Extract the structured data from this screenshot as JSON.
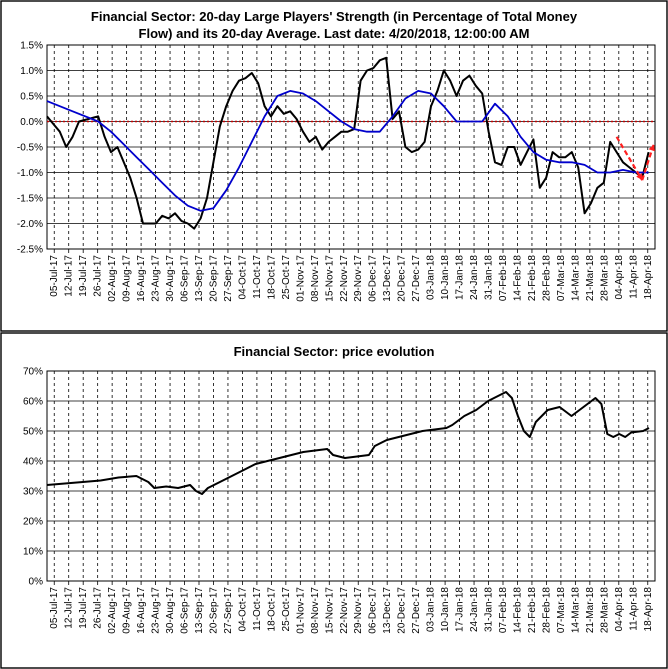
{
  "chart_data": [
    {
      "type": "line",
      "title_lines": [
        "Financial Sector: 20-day Large Players' Strength (in Percentage of Total Money",
        "Flow) and its 20-day Average. Last date: 4/20/2018, 12:00:00 AM"
      ],
      "ylim": [
        -2.5,
        1.5
      ],
      "ytick_labels": [
        "1.5%",
        "1.0%",
        "0.5%",
        "0.0%",
        "-0.5%",
        "-1.0%",
        "-1.5%",
        "-2.0%",
        "-2.5%"
      ],
      "grid": true,
      "zero_line_color": "#c00000",
      "x_labels": [
        "05-Jul-17",
        "12-Jul-17",
        "19-Jul-17",
        "26-Jul-17",
        "02-Aug-17",
        "09-Aug-17",
        "16-Aug-17",
        "23-Aug-17",
        "30-Aug-17",
        "06-Sep-17",
        "13-Sep-17",
        "20-Sep-17",
        "27-Sep-17",
        "04-Oct-17",
        "11-Oct-17",
        "18-Oct-17",
        "25-Oct-17",
        "01-Nov-17",
        "08-Nov-17",
        "15-Nov-17",
        "22-Nov-17",
        "29-Nov-17",
        "06-Dec-17",
        "13-Dec-17",
        "20-Dec-17",
        "27-Dec-17",
        "03-Jan-18",
        "10-Jan-18",
        "17-Jan-18",
        "24-Jan-18",
        "31-Jan-18",
        "07-Feb-18",
        "14-Feb-18",
        "21-Feb-18",
        "28-Feb-18",
        "07-Mar-18",
        "14-Mar-18",
        "21-Mar-18",
        "28-Mar-18",
        "04-Apr-18",
        "11-Apr-18",
        "18-Apr-18"
      ],
      "series": [
        {
          "color": "#000000",
          "points": [
            [
              0,
              0.1
            ],
            [
              2,
              -0.2
            ],
            [
              3,
              -0.5
            ],
            [
              4,
              -0.3
            ],
            [
              5,
              0.0
            ],
            [
              8,
              0.1
            ],
            [
              9,
              -0.3
            ],
            [
              10,
              -0.6
            ],
            [
              11,
              -0.5
            ],
            [
              12,
              -0.8
            ],
            [
              13,
              -1.1
            ],
            [
              14,
              -1.5
            ],
            [
              15,
              -2.0
            ],
            [
              17,
              -2.0
            ],
            [
              18,
              -1.85
            ],
            [
              19,
              -1.9
            ],
            [
              20,
              -1.8
            ],
            [
              21,
              -1.95
            ],
            [
              22,
              -2.0
            ],
            [
              23,
              -2.1
            ],
            [
              24,
              -1.9
            ],
            [
              25,
              -1.5
            ],
            [
              26,
              -0.8
            ],
            [
              27,
              -0.1
            ],
            [
              28,
              0.3
            ],
            [
              29,
              0.6
            ],
            [
              30,
              0.8
            ],
            [
              31,
              0.85
            ],
            [
              32,
              0.95
            ],
            [
              33,
              0.75
            ],
            [
              34,
              0.3
            ],
            [
              35,
              0.1
            ],
            [
              36,
              0.3
            ],
            [
              37,
              0.15
            ],
            [
              38,
              0.2
            ],
            [
              39,
              0.05
            ],
            [
              40,
              -0.2
            ],
            [
              41,
              -0.4
            ],
            [
              42,
              -0.3
            ],
            [
              43,
              -0.55
            ],
            [
              44,
              -0.4
            ],
            [
              45,
              -0.3
            ],
            [
              46,
              -0.2
            ],
            [
              47,
              -0.2
            ],
            [
              48,
              -0.15
            ],
            [
              49,
              0.8
            ],
            [
              50,
              1.0
            ],
            [
              51,
              1.05
            ],
            [
              52,
              1.2
            ],
            [
              53,
              1.25
            ],
            [
              54,
              0.05
            ],
            [
              55,
              0.2
            ],
            [
              56,
              -0.5
            ],
            [
              57,
              -0.6
            ],
            [
              58,
              -0.55
            ],
            [
              59,
              -0.4
            ],
            [
              60,
              0.3
            ],
            [
              61,
              0.6
            ],
            [
              62,
              1.0
            ],
            [
              63,
              0.8
            ],
            [
              64,
              0.5
            ],
            [
              65,
              0.8
            ],
            [
              66,
              0.9
            ],
            [
              67,
              0.7
            ],
            [
              68,
              0.55
            ],
            [
              69,
              -0.2
            ],
            [
              70,
              -0.8
            ],
            [
              71,
              -0.85
            ],
            [
              72,
              -0.5
            ],
            [
              73,
              -0.5
            ],
            [
              74,
              -0.85
            ],
            [
              75,
              -0.6
            ],
            [
              76,
              -0.35
            ],
            [
              77,
              -1.3
            ],
            [
              78,
              -1.1
            ],
            [
              79,
              -0.6
            ],
            [
              80,
              -0.7
            ],
            [
              81,
              -0.7
            ],
            [
              82,
              -0.6
            ],
            [
              83,
              -0.9
            ],
            [
              84,
              -1.8
            ],
            [
              85,
              -1.6
            ],
            [
              86,
              -1.3
            ],
            [
              87,
              -1.2
            ],
            [
              88,
              -0.4
            ],
            [
              89,
              -0.6
            ],
            [
              90,
              -0.8
            ],
            [
              91,
              -0.9
            ],
            [
              92,
              -1.0
            ],
            [
              93,
              -1.1
            ],
            [
              94,
              -0.6
            ]
          ]
        },
        {
          "color": "#0000cc",
          "points": [
            [
              0,
              0.4
            ],
            [
              4,
              0.2
            ],
            [
              8,
              0.0
            ],
            [
              10,
              -0.2
            ],
            [
              12,
              -0.45
            ],
            [
              14,
              -0.7
            ],
            [
              16,
              -0.95
            ],
            [
              18,
              -1.2
            ],
            [
              20,
              -1.45
            ],
            [
              22,
              -1.65
            ],
            [
              24,
              -1.75
            ],
            [
              26,
              -1.7
            ],
            [
              28,
              -1.35
            ],
            [
              30,
              -0.9
            ],
            [
              32,
              -0.4
            ],
            [
              34,
              0.1
            ],
            [
              36,
              0.5
            ],
            [
              38,
              0.6
            ],
            [
              40,
              0.55
            ],
            [
              42,
              0.4
            ],
            [
              44,
              0.2
            ],
            [
              46,
              0.0
            ],
            [
              48,
              -0.15
            ],
            [
              50,
              -0.2
            ],
            [
              52,
              -0.2
            ],
            [
              54,
              0.1
            ],
            [
              56,
              0.45
            ],
            [
              58,
              0.6
            ],
            [
              60,
              0.55
            ],
            [
              62,
              0.3
            ],
            [
              64,
              0.0
            ],
            [
              66,
              0.0
            ],
            [
              68,
              0.0
            ],
            [
              70,
              0.35
            ],
            [
              72,
              0.1
            ],
            [
              74,
              -0.3
            ],
            [
              76,
              -0.6
            ],
            [
              78,
              -0.75
            ],
            [
              80,
              -0.8
            ],
            [
              82,
              -0.8
            ],
            [
              84,
              -0.85
            ],
            [
              86,
              -1.0
            ],
            [
              88,
              -1.0
            ],
            [
              90,
              -0.95
            ],
            [
              92,
              -1.0
            ],
            [
              94,
              -1.0
            ]
          ]
        }
      ],
      "annotation_arrows": {
        "color": "#ff2020",
        "arrows": [
          {
            "from": [
              89,
              -0.3
            ],
            "to": [
              93,
              -1.15
            ]
          },
          {
            "from": [
              93,
              -1.15
            ],
            "to": [
              94.8,
              -0.45
            ]
          }
        ]
      }
    },
    {
      "type": "line",
      "title": "Financial Sector: price evolution",
      "ylim": [
        0,
        70
      ],
      "ytick_labels": [
        "70%",
        "60%",
        "50%",
        "40%",
        "30%",
        "20%",
        "10%",
        "0%"
      ],
      "grid": true,
      "x_labels": [
        "05-Jul-17",
        "12-Jul-17",
        "19-Jul-17",
        "26-Jul-17",
        "02-Aug-17",
        "09-Aug-17",
        "16-Aug-17",
        "23-Aug-17",
        "30-Aug-17",
        "06-Sep-17",
        "13-Sep-17",
        "20-Sep-17",
        "27-Sep-17",
        "04-Oct-17",
        "11-Oct-17",
        "18-Oct-17",
        "25-Oct-17",
        "01-Nov-17",
        "08-Nov-17",
        "15-Nov-17",
        "22-Nov-17",
        "29-Nov-17",
        "06-Dec-17",
        "13-Dec-17",
        "20-Dec-17",
        "27-Dec-17",
        "03-Jan-18",
        "10-Jan-18",
        "17-Jan-18",
        "24-Jan-18",
        "31-Jan-18",
        "07-Feb-18",
        "14-Feb-18",
        "21-Feb-18",
        "28-Feb-18",
        "07-Mar-18",
        "14-Mar-18",
        "21-Mar-18",
        "28-Mar-18",
        "04-Apr-18",
        "11-Apr-18",
        "18-Apr-18"
      ],
      "series": [
        {
          "color": "#000000",
          "points": [
            [
              0,
              32
            ],
            [
              3,
              32.5
            ],
            [
              6,
              33
            ],
            [
              9,
              33.5
            ],
            [
              12,
              34.5
            ],
            [
              15,
              35
            ],
            [
              17,
              33
            ],
            [
              18,
              31
            ],
            [
              20,
              31.5
            ],
            [
              22,
              31
            ],
            [
              24,
              32
            ],
            [
              25,
              30
            ],
            [
              26,
              29
            ],
            [
              27,
              31
            ],
            [
              29,
              33
            ],
            [
              31,
              35
            ],
            [
              33,
              37
            ],
            [
              35,
              39
            ],
            [
              37,
              40
            ],
            [
              39,
              41
            ],
            [
              41,
              42
            ],
            [
              43,
              43
            ],
            [
              45,
              43.5
            ],
            [
              47,
              44
            ],
            [
              48,
              42
            ],
            [
              50,
              41
            ],
            [
              52,
              41.5
            ],
            [
              54,
              42
            ],
            [
              55,
              45
            ],
            [
              57,
              47
            ],
            [
              59,
              48
            ],
            [
              61,
              49
            ],
            [
              63,
              50
            ],
            [
              65,
              50.5
            ],
            [
              67,
              51
            ],
            [
              68,
              52
            ],
            [
              70,
              55
            ],
            [
              72,
              57
            ],
            [
              74,
              60
            ],
            [
              76,
              62
            ],
            [
              77,
              63
            ],
            [
              78,
              61
            ],
            [
              79,
              55
            ],
            [
              80,
              50
            ],
            [
              81,
              48
            ],
            [
              82,
              53
            ],
            [
              84,
              57
            ],
            [
              86,
              58
            ],
            [
              88,
              55
            ],
            [
              90,
              58
            ],
            [
              92,
              61
            ],
            [
              93,
              59
            ],
            [
              94,
              49
            ],
            [
              95,
              48
            ],
            [
              96,
              49
            ],
            [
              97,
              48
            ],
            [
              98,
              49.5
            ],
            [
              100,
              50
            ],
            [
              101,
              51
            ]
          ]
        }
      ]
    }
  ]
}
